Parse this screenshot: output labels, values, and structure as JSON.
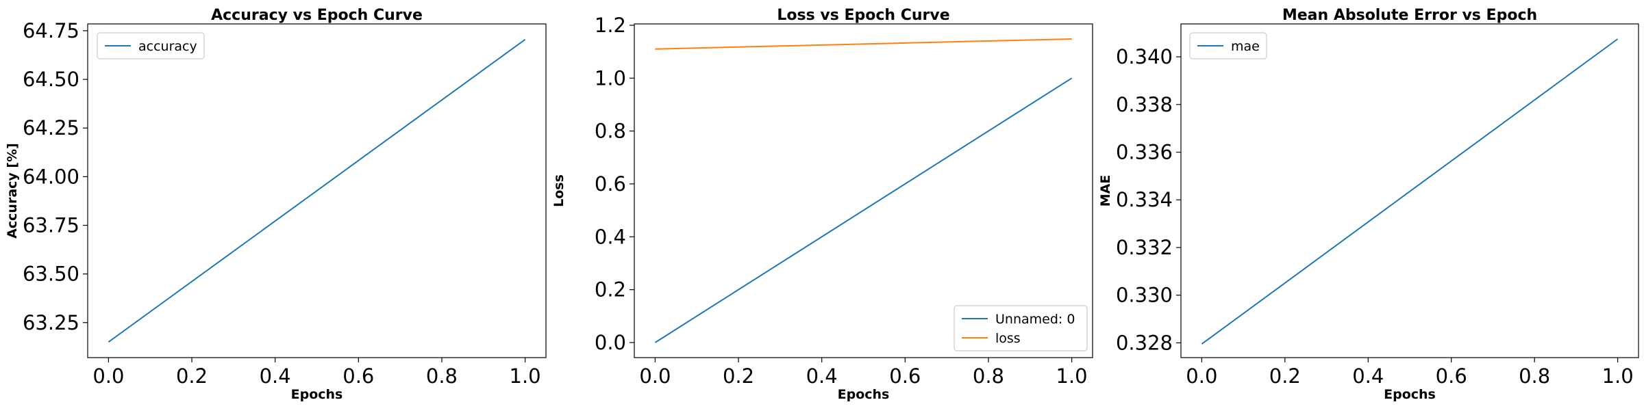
{
  "chart_data": [
    {
      "type": "line",
      "title": "Accuracy vs Epoch Curve",
      "xlabel": "Epochs",
      "ylabel": "Accuracy [%]",
      "xlim": [
        -0.05,
        1.05
      ],
      "ylim": [
        63.07,
        64.785
      ],
      "xticks": [
        0.0,
        0.2,
        0.4,
        0.6,
        0.8,
        1.0
      ],
      "xtick_labels": [
        "0.0",
        "0.2",
        "0.4",
        "0.6",
        "0.8",
        "1.0"
      ],
      "yticks": [
        63.25,
        63.5,
        63.75,
        64.0,
        64.25,
        64.5,
        64.75
      ],
      "ytick_labels": [
        "63.25",
        "63.50",
        "63.75",
        "64.00",
        "64.25",
        "64.50",
        "64.75"
      ],
      "legend_loc": "upper-left",
      "series": [
        {
          "name": "accuracy",
          "color": "#1f77b4",
          "x": [
            0,
            1
          ],
          "values": [
            63.15,
            64.705
          ]
        }
      ]
    },
    {
      "type": "line",
      "title": "Loss vs Epoch Curve",
      "xlabel": "Epochs",
      "ylabel": "Loss",
      "xlim": [
        -0.05,
        1.05
      ],
      "ylim": [
        -0.057,
        1.205
      ],
      "xticks": [
        0.0,
        0.2,
        0.4,
        0.6,
        0.8,
        1.0
      ],
      "xtick_labels": [
        "0.0",
        "0.2",
        "0.4",
        "0.6",
        "0.8",
        "1.0"
      ],
      "yticks": [
        0.0,
        0.2,
        0.4,
        0.6,
        0.8,
        1.0,
        1.2
      ],
      "ytick_labels": [
        "0.0",
        "0.2",
        "0.4",
        "0.6",
        "0.8",
        "1.0",
        "1.2"
      ],
      "legend_loc": "lower-right",
      "series": [
        {
          "name": "Unnamed: 0",
          "color": "#1f77b4",
          "x": [
            0,
            1
          ],
          "values": [
            0.0,
            1.0
          ]
        },
        {
          "name": "loss",
          "color": "#ff7f0e",
          "x": [
            0,
            1
          ],
          "values": [
            1.11,
            1.148
          ]
        }
      ]
    },
    {
      "type": "line",
      "title": "Mean Absolute Error vs Epoch",
      "xlabel": "Epochs",
      "ylabel": "MAE",
      "xlim": [
        -0.05,
        1.05
      ],
      "ylim": [
        0.32738,
        0.34138
      ],
      "xticks": [
        0.0,
        0.2,
        0.4,
        0.6,
        0.8,
        1.0
      ],
      "xtick_labels": [
        "0.0",
        "0.2",
        "0.4",
        "0.6",
        "0.8",
        "1.0"
      ],
      "yticks": [
        0.328,
        0.33,
        0.332,
        0.334,
        0.336,
        0.338,
        0.34
      ],
      "ytick_labels": [
        "0.328",
        "0.330",
        "0.332",
        "0.334",
        "0.336",
        "0.338",
        "0.340"
      ],
      "legend_loc": "upper-left",
      "series": [
        {
          "name": "mae",
          "color": "#1f77b4",
          "x": [
            0,
            1
          ],
          "values": [
            0.32795,
            0.34075
          ]
        }
      ]
    }
  ]
}
